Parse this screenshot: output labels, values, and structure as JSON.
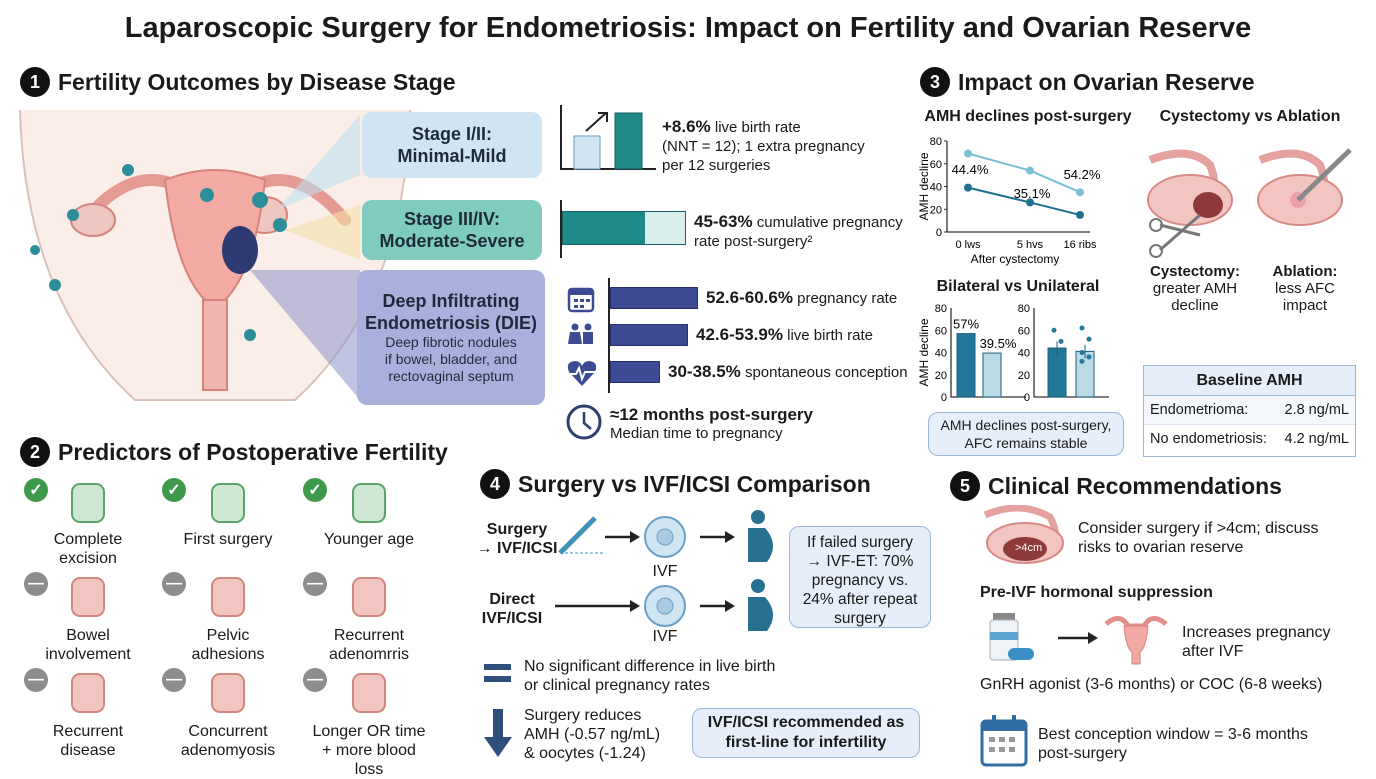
{
  "title": "Laparoscopic Surgery for Endometriosis: Impact on Fertility and Ovarian Reserve",
  "s1": {
    "num": "1",
    "heading": "Fertility Outcomes by Disease Stage",
    "stage12": {
      "l1": "Stage I/II:",
      "l2": "Minimal-Mild",
      "stat": "+8.6%",
      "desc1": " live birth rate",
      "desc2": "(NNT = 12); 1 extra pregnancy",
      "desc3": "per 12 surgeries"
    },
    "stage34": {
      "l1": "Stage III/IV:",
      "l2": "Moderate-Severe",
      "stat": "45-63%",
      "desc1": " cumulative pregnancy",
      "desc2": "rate post-surgery²",
      "fill_pct": 63
    },
    "die": {
      "l1": "Deep Infiltrating",
      "l2": "Endometriosis (DIE)",
      "d1": "Deep fibrotic nodules",
      "d2": "if bowel, bladder, and",
      "d3": "rectovaginal septum",
      "rows": [
        {
          "stat": "52.6-60.6%",
          "text": " pregnancy rate",
          "icon": "calendar-icon"
        },
        {
          "stat": "42.6-53.9%",
          "text": " live birth rate",
          "icon": "couple-icon"
        },
        {
          "stat": "30-38.5%",
          "text": " spontaneous conception",
          "icon": "heartbeat-icon"
        }
      ]
    },
    "time": {
      "stat": "≈12 months post-surgery",
      "text": "Median time to pregnancy"
    }
  },
  "s2": {
    "num": "2",
    "heading": "Predictors of Postoperative Fertility",
    "items": [
      {
        "label": "Complete excision",
        "type": "positive"
      },
      {
        "label": "First surgery",
        "type": "positive"
      },
      {
        "label": "Younger age",
        "type": "positive"
      },
      {
        "label": "Bowel involvement",
        "type": "negative"
      },
      {
        "label": "Pelvic adhesions",
        "type": "negative"
      },
      {
        "label": "Recurrent adenomrris",
        "type": "negative"
      },
      {
        "label": "Recurrent disease",
        "type": "negative"
      },
      {
        "label": "Concurrent adenomyosis",
        "type": "negative"
      },
      {
        "label": "Longer OR time + more blood loss",
        "type": "negative"
      }
    ]
  },
  "s3": {
    "num": "3",
    "heading": "Impact on Ovarian Reserve",
    "line": {
      "title": "AMH declines post-surgery",
      "ylabel": "AMH decline",
      "xlabel": "After cystectomy",
      "yticks": [
        0,
        20,
        40,
        60,
        80
      ],
      "xticks": [
        "0 lws",
        "5 hvs",
        "16 ribs"
      ],
      "series": [
        {
          "values": [
            69,
            54,
            35
          ],
          "color": "#7bbfd4"
        },
        {
          "values": [
            39,
            26,
            15
          ],
          "color": "#1f6f8f"
        }
      ],
      "labels": [
        "44.4%",
        "35.1%",
        "54.2%"
      ]
    },
    "bars": {
      "title": "Bilateral vs Unilateral",
      "ylabel": "AMH decline",
      "yticks": [
        0,
        20,
        40,
        60,
        80
      ],
      "left": [
        {
          "value": 57,
          "label": "57%",
          "color": "#23789a"
        },
        {
          "value": 39.5,
          "label": "39.5%",
          "color": "#b9dbe6"
        }
      ],
      "right": [
        {
          "value": 44,
          "color": "#23789a"
        },
        {
          "value": 41,
          "color": "#b9dbe6"
        }
      ]
    },
    "note": "AMH declines post-surgery, AFC remains stable",
    "cva": {
      "title": "Cystectomy vs Ablation",
      "cyst_b": "Cystectomy:",
      "cyst_t": "greater AMH decline",
      "abl_b": "Ablation:",
      "abl_t": "less AFC impact"
    },
    "baseline": {
      "title": "Baseline AMH",
      "rows": [
        {
          "k": "Endometrioma:",
          "v": "2.8 ng/mL"
        },
        {
          "k": "No endometriosis:",
          "v": "4.2 ng/mL"
        }
      ]
    }
  },
  "s4": {
    "num": "4",
    "heading": "Surgery vs IVF/ICSI Comparison",
    "row1": {
      "l1": "Surgery",
      "l2": "→ IVF/ICSI",
      "ivf": "IVF"
    },
    "row2": {
      "l1": "Direct",
      "l2": "IVF/ICSI",
      "ivf": "IVF"
    },
    "failed": "If failed surgery → IVF-ET: 70% pregnancy vs. 24% after repeat surgery",
    "equal": "No significant difference in live birth or clinical pregnancy rates",
    "reduce": "Surgery reduces AMH (-0.57 ng/mL) & oocytes (-1.24)",
    "rec": "IVF/ICSI recommended as first-line for infertility"
  },
  "s5": {
    "num": "5",
    "heading": "Clinical Recommendations",
    "cyst_label": ">4cm",
    "consider": "Consider surgery if >4cm; discuss risks to ovarian reserve",
    "pre_title": "Pre-IVF hormonal suppression",
    "increase": "Increases pregnancy after IVF",
    "gnrh": "GnRH agonist (3-6 months) or COC (6-8 weeks)",
    "window": "Best conception window = 3-6 months post-surgery"
  }
}
